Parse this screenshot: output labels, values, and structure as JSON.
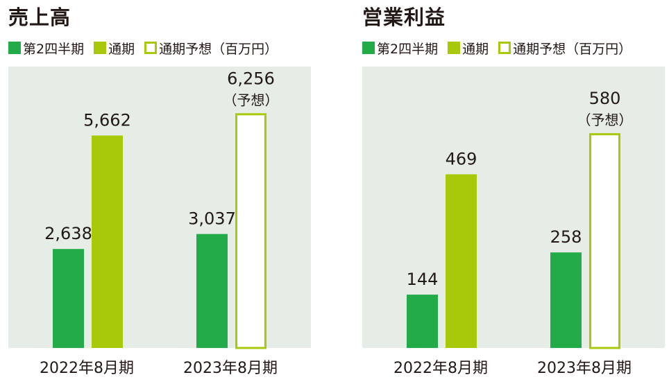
{
  "colors": {
    "plot_bg": "#e5ede6",
    "q2": "#22ab48",
    "full": "#a8c90a",
    "forecast_border": "#a8c90a",
    "forecast_fill": "#ffffff",
    "text": "#231815"
  },
  "legend": {
    "q2": "第2四半期",
    "full": "通期",
    "forecast": "通期予想",
    "unit": "（百万円）"
  },
  "chart_data": [
    {
      "type": "bar",
      "title": "売上高",
      "categories": [
        "2022年8月期",
        "2023年8月期"
      ],
      "series": [
        {
          "name": "第2四半期",
          "values": [
            2638,
            3037
          ],
          "labels": [
            "2,638",
            "3,037"
          ],
          "style": [
            "solid",
            "solid"
          ]
        },
        {
          "name": "通期",
          "values": [
            5662,
            6256
          ],
          "labels": [
            "5,662",
            "6,256"
          ],
          "notes": [
            "",
            "（予想）"
          ],
          "style": [
            "solid",
            "forecast"
          ]
        }
      ],
      "ymax": 7500
    },
    {
      "type": "bar",
      "title": "営業利益",
      "categories": [
        "2022年8月期",
        "2023年8月期"
      ],
      "series": [
        {
          "name": "第2四半期",
          "values": [
            144,
            258
          ],
          "labels": [
            "144",
            "258"
          ],
          "style": [
            "solid",
            "solid"
          ]
        },
        {
          "name": "通期",
          "values": [
            469,
            580
          ],
          "labels": [
            "469",
            "580"
          ],
          "notes": [
            "",
            "（予想）"
          ],
          "style": [
            "solid",
            "forecast"
          ]
        }
      ],
      "ymax": 760
    }
  ]
}
